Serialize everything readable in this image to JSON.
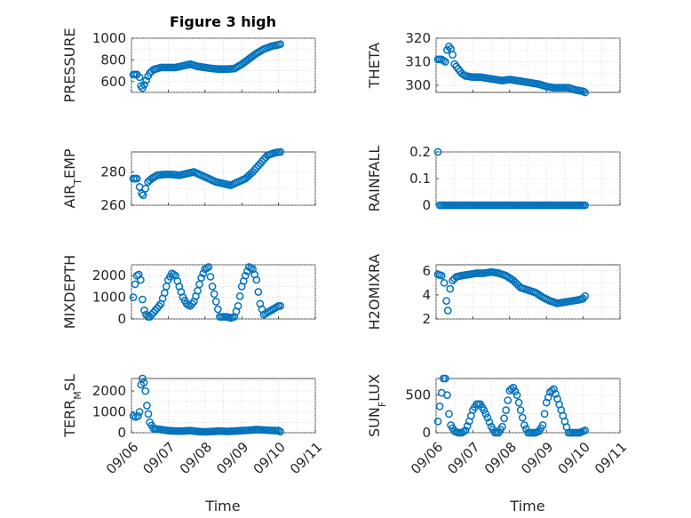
{
  "title": "Figure 3 high",
  "xlabel": "Time",
  "x_ticks": [
    "09/06",
    "09/07",
    "09/08",
    "09/09",
    "09/10",
    "09/11"
  ],
  "marker_color": "#0072BD",
  "chart_data": [
    {
      "type": "scatter",
      "ylabel_main": "PRESSURE",
      "ylabel_sub": "",
      "ylabel_tail": "",
      "ylim": [
        500,
        1000
      ],
      "yticks": [
        600,
        800,
        1000
      ],
      "x": [
        0.05,
        0.15,
        0.22,
        0.26,
        0.3,
        0.35,
        0.4,
        0.45,
        0.5,
        0.6,
        0.7,
        0.8,
        0.9,
        1.0,
        1.2,
        1.4,
        1.6,
        1.8,
        2.0,
        2.2,
        2.4,
        2.6,
        2.8,
        3.0,
        3.2,
        3.4,
        3.6,
        3.8,
        4.0,
        4.05
      ],
      "y": [
        665,
        665,
        640,
        560,
        540,
        570,
        610,
        650,
        680,
        710,
        720,
        730,
        730,
        730,
        730,
        745,
        760,
        740,
        730,
        720,
        715,
        715,
        720,
        760,
        810,
        860,
        900,
        925,
        940,
        945
      ]
    },
    {
      "type": "scatter",
      "ylabel_main": "THETA",
      "ylabel_sub": "",
      "ylabel_tail": "",
      "ylim": [
        297,
        320
      ],
      "yticks": [
        300,
        310,
        320
      ],
      "x": [
        0.05,
        0.15,
        0.25,
        0.3,
        0.35,
        0.4,
        0.45,
        0.5,
        0.6,
        0.7,
        0.8,
        1.0,
        1.2,
        1.4,
        1.6,
        1.8,
        2.0,
        2.2,
        2.4,
        2.6,
        2.8,
        3.0,
        3.2,
        3.4,
        3.6,
        3.8,
        4.0,
        4.05
      ],
      "y": [
        311,
        311,
        310,
        315,
        316.5,
        315.5,
        313,
        309,
        307,
        305,
        304,
        303.5,
        303.5,
        303,
        302.5,
        302,
        302.5,
        302,
        301.5,
        301,
        300.5,
        299.5,
        299,
        299,
        299,
        298,
        297.5,
        297
      ]
    },
    {
      "type": "scatter",
      "ylabel_main": "AIR",
      "ylabel_sub": "T",
      "ylabel_tail": "EMP",
      "ylim": [
        260,
        292
      ],
      "yticks": [
        260,
        280
      ],
      "x": [
        0.05,
        0.15,
        0.22,
        0.28,
        0.32,
        0.38,
        0.45,
        0.55,
        0.7,
        0.9,
        1.1,
        1.3,
        1.5,
        1.7,
        1.9,
        2.1,
        2.3,
        2.5,
        2.7,
        2.9,
        3.1,
        3.3,
        3.5,
        3.7,
        3.9,
        4.05
      ],
      "y": [
        276,
        276,
        271,
        267,
        266,
        270,
        274,
        276,
        278,
        278.5,
        278.5,
        278,
        279,
        280,
        278,
        276,
        274,
        273,
        272,
        274,
        276,
        280,
        285,
        290,
        291.5,
        292
      ]
    },
    {
      "type": "scatter",
      "ylabel_main": "RAINFALL",
      "ylabel_sub": "",
      "ylabel_tail": "",
      "ylim": [
        0,
        0.2
      ],
      "yticks": [
        0,
        0.1,
        0.2
      ],
      "x": [
        0.05,
        0.1,
        0.3,
        0.5,
        0.7,
        0.9,
        1.1,
        1.3,
        1.5,
        1.7,
        1.9,
        2.1,
        2.3,
        2.5,
        2.7,
        2.9,
        3.1,
        3.3,
        3.5,
        3.7,
        3.9,
        4.05
      ],
      "y": [
        0.2,
        0,
        0,
        0,
        0,
        0,
        0,
        0,
        0,
        0,
        0,
        0,
        0,
        0,
        0,
        0,
        0,
        0,
        0,
        0,
        0,
        0
      ]
    },
    {
      "type": "scatter",
      "ylabel_main": "MIXDEPTH",
      "ylabel_sub": "",
      "ylabel_tail": "",
      "ylim": [
        0,
        2500
      ],
      "yticks": [
        0,
        1000,
        2000
      ],
      "x": [
        0.05,
        0.1,
        0.15,
        0.2,
        0.25,
        0.3,
        0.35,
        0.4,
        0.45,
        0.5,
        0.6,
        0.7,
        0.8,
        0.9,
        1.0,
        1.1,
        1.2,
        1.3,
        1.4,
        1.5,
        1.6,
        1.7,
        1.8,
        1.9,
        2.0,
        2.1,
        2.2,
        2.3,
        2.4,
        2.5,
        2.6,
        2.7,
        2.8,
        2.9,
        3.0,
        3.1,
        3.2,
        3.3,
        3.4,
        3.5,
        3.6,
        3.7,
        3.8,
        3.9,
        4.0,
        4.05
      ],
      "y": [
        1000,
        1600,
        2000,
        2050,
        1800,
        900,
        400,
        200,
        100,
        100,
        300,
        500,
        700,
        1200,
        1800,
        2100,
        2000,
        1500,
        1000,
        700,
        600,
        800,
        1300,
        1900,
        2300,
        2400,
        1500,
        800,
        100,
        100,
        100,
        50,
        100,
        600,
        1500,
        2000,
        2400,
        2300,
        1800,
        700,
        200,
        300,
        400,
        500,
        600,
        600
      ]
    },
    {
      "type": "scatter",
      "ylabel_main": "H2OMIXRA",
      "ylabel_sub": "",
      "ylabel_tail": "",
      "ylim": [
        2,
        6.5
      ],
      "yticks": [
        2,
        4,
        6
      ],
      "x": [
        0.05,
        0.15,
        0.22,
        0.28,
        0.32,
        0.38,
        0.45,
        0.55,
        0.7,
        0.9,
        1.1,
        1.3,
        1.5,
        1.7,
        1.9,
        2.1,
        2.3,
        2.5,
        2.7,
        2.9,
        3.1,
        3.3,
        3.5,
        3.7,
        3.9,
        4.0,
        4.05
      ],
      "y": [
        5.7,
        5.6,
        5,
        3.5,
        2.7,
        4.5,
        5.2,
        5.5,
        5.6,
        5.7,
        5.8,
        5.8,
        5.9,
        5.8,
        5.6,
        5.2,
        4.6,
        4.4,
        4.2,
        3.8,
        3.5,
        3.3,
        3.4,
        3.5,
        3.6,
        3.7,
        3.9
      ]
    },
    {
      "type": "scatter",
      "ylabel_main": "TERR",
      "ylabel_sub": "M",
      "ylabel_tail": "SL",
      "ylim": [
        0,
        2600
      ],
      "yticks": [
        0,
        1000,
        2000
      ],
      "x": [
        0.05,
        0.12,
        0.18,
        0.22,
        0.26,
        0.3,
        0.34,
        0.38,
        0.42,
        0.46,
        0.5,
        0.6,
        0.8,
        1.0,
        1.2,
        1.4,
        1.6,
        1.8,
        2.0,
        2.2,
        2.4,
        2.6,
        2.8,
        3.0,
        3.2,
        3.4,
        3.6,
        3.8,
        4.0,
        4.05
      ],
      "y": [
        800,
        750,
        800,
        1000,
        2300,
        2600,
        2400,
        2000,
        1300,
        900,
        500,
        200,
        150,
        100,
        80,
        80,
        100,
        60,
        40,
        60,
        80,
        60,
        80,
        100,
        120,
        150,
        130,
        110,
        100,
        50
      ]
    },
    {
      "type": "scatter",
      "ylabel_main": "SUN",
      "ylabel_sub": "F",
      "ylabel_tail": "LUX",
      "ylim": [
        0,
        720
      ],
      "yticks": [
        0,
        500
      ],
      "x": [
        0.05,
        0.1,
        0.15,
        0.2,
        0.25,
        0.3,
        0.35,
        0.4,
        0.5,
        0.6,
        0.7,
        0.8,
        0.9,
        1.0,
        1.1,
        1.2,
        1.3,
        1.4,
        1.5,
        1.6,
        1.7,
        1.8,
        1.9,
        2.0,
        2.1,
        2.2,
        2.3,
        2.4,
        2.5,
        2.6,
        2.7,
        2.8,
        2.9,
        3.0,
        3.1,
        3.2,
        3.3,
        3.4,
        3.5,
        3.6,
        3.7,
        3.8,
        3.9,
        4.0,
        4.05
      ],
      "y": [
        150,
        350,
        530,
        720,
        720,
        500,
        250,
        100,
        20,
        0,
        0,
        30,
        150,
        300,
        380,
        380,
        300,
        200,
        80,
        0,
        0,
        80,
        300,
        560,
        600,
        500,
        300,
        100,
        0,
        0,
        0,
        20,
        100,
        400,
        540,
        580,
        450,
        300,
        150,
        0,
        0,
        0,
        0,
        20,
        30
      ]
    }
  ]
}
